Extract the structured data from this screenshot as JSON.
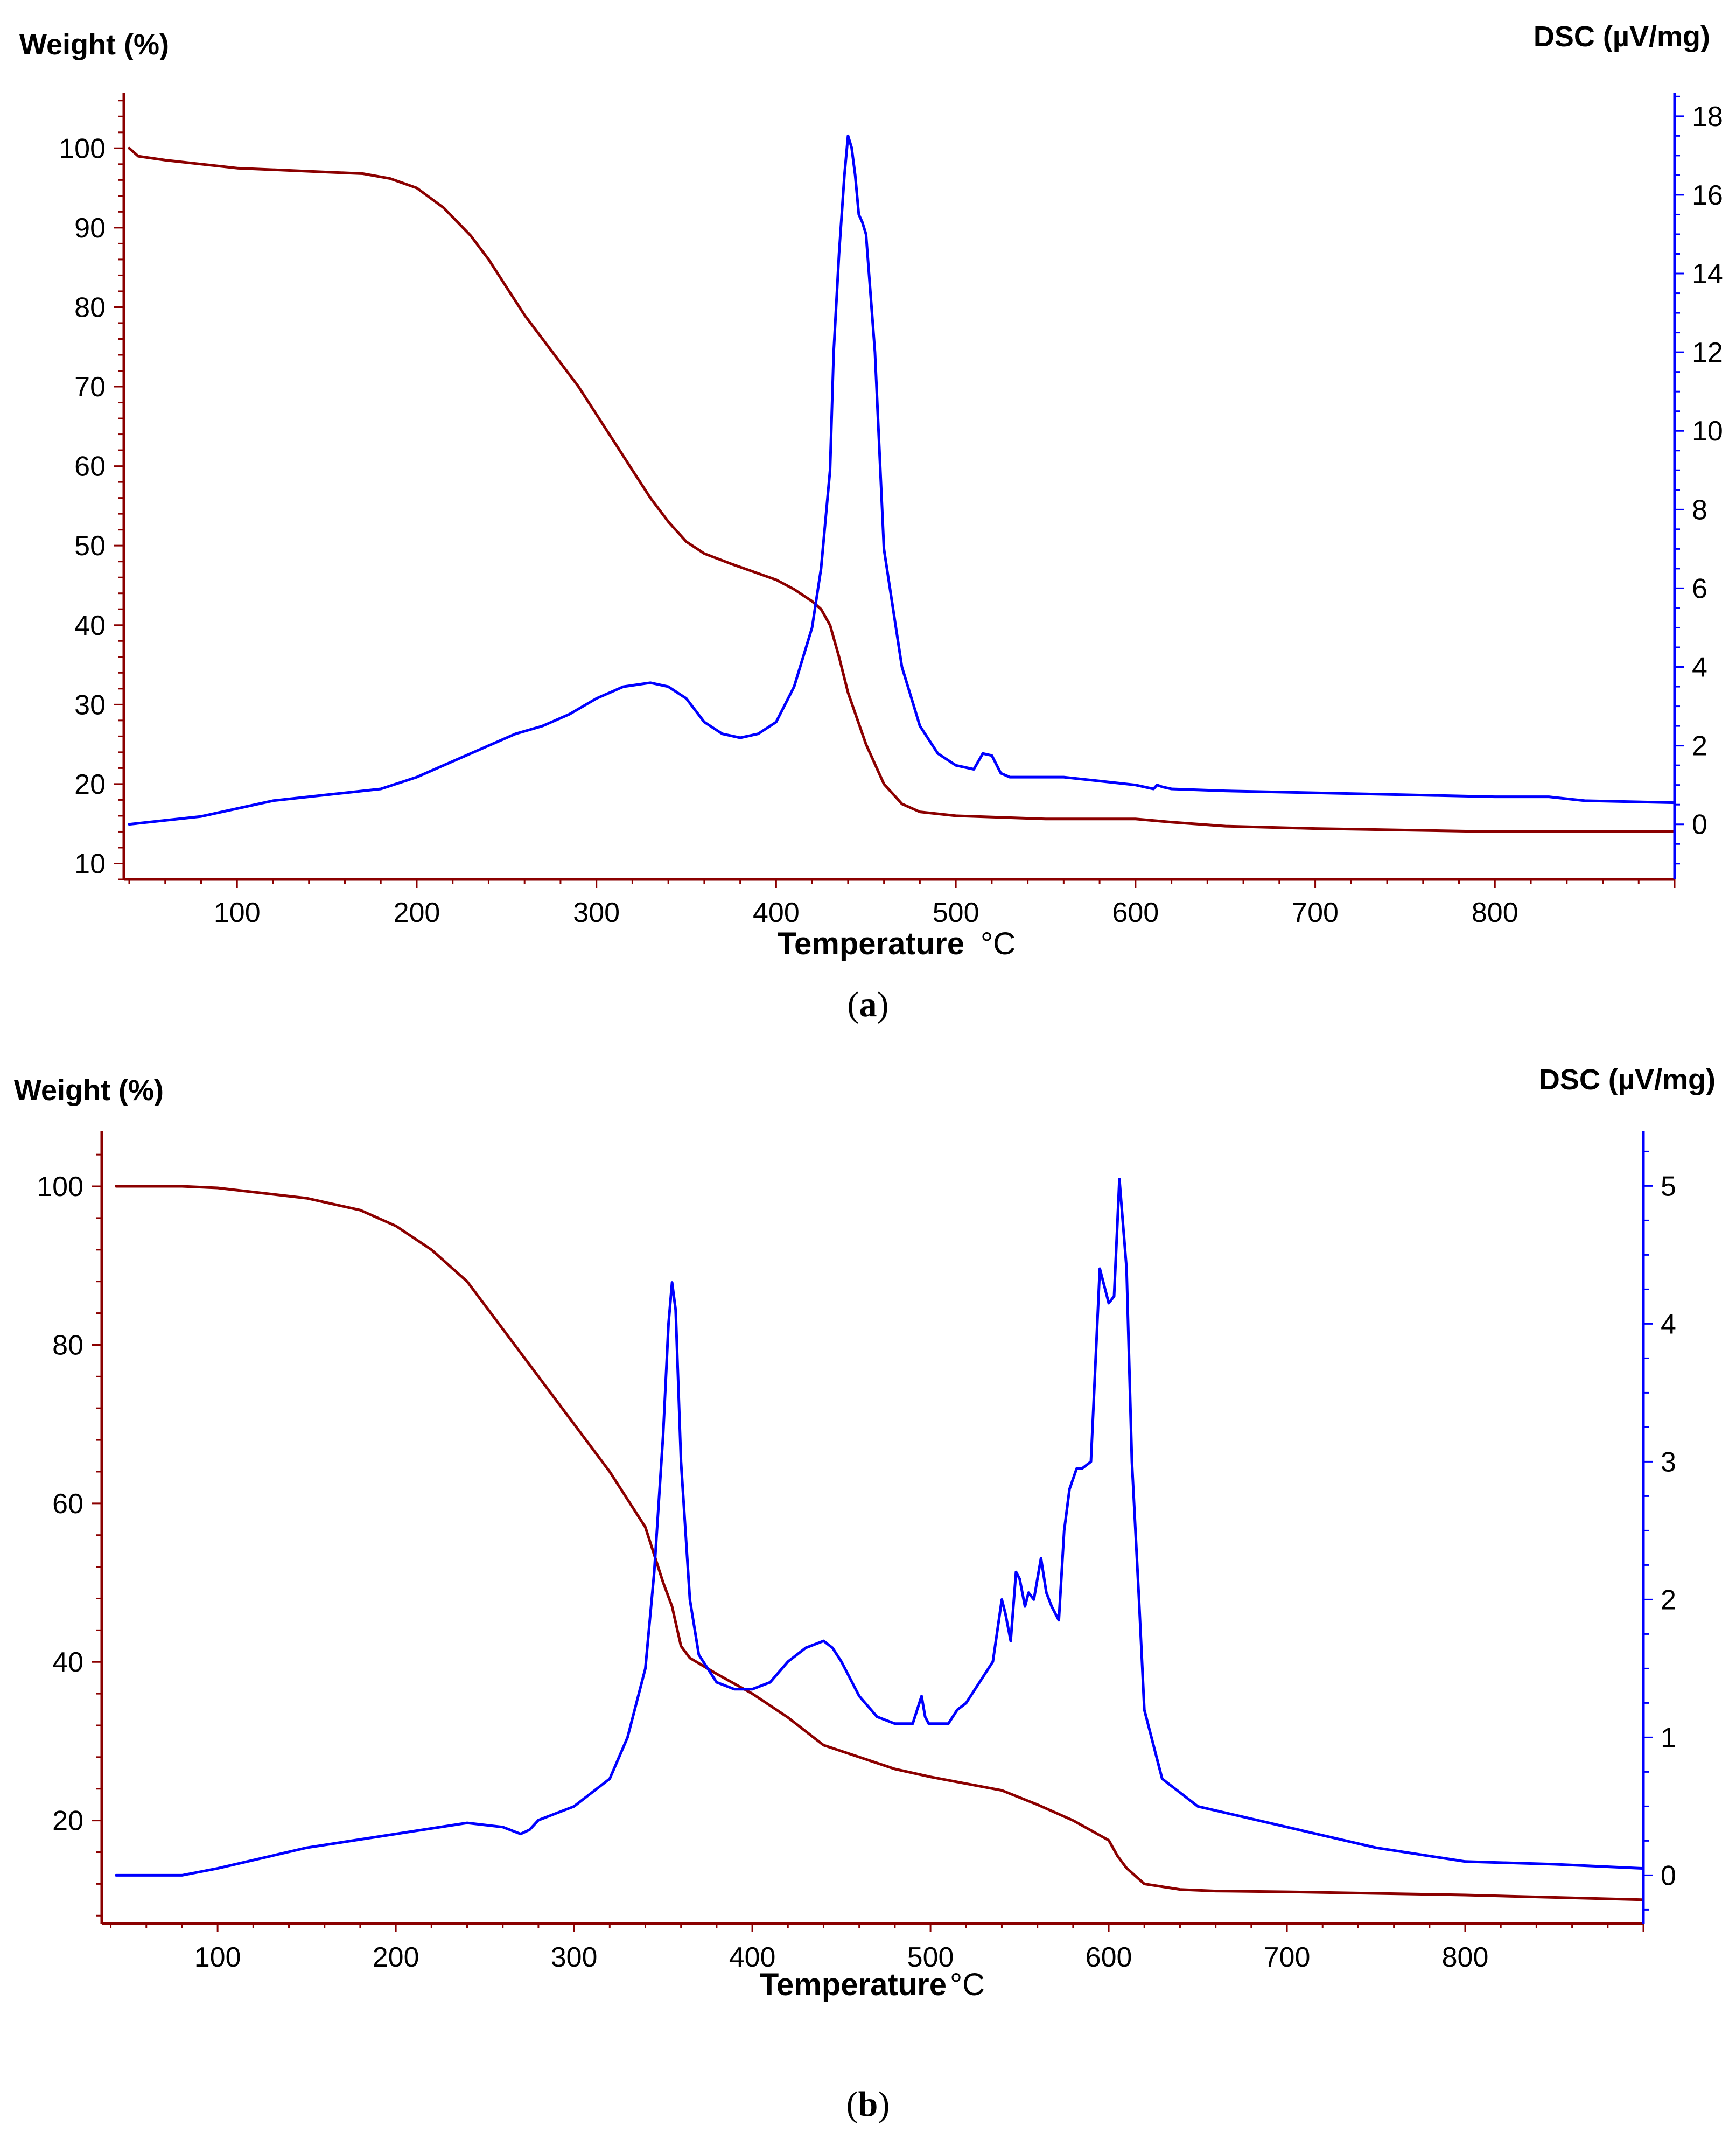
{
  "colors": {
    "weight": "#8b0000",
    "dsc": "#0000ff",
    "axis_x": "#8b0000",
    "axis_right": "#0000ff",
    "text": "#000000"
  },
  "chart_data": [
    {
      "type": "line",
      "caption_letter": "a",
      "xlabel": "Temperature",
      "xunit": "°C",
      "ylabel_left": "Weight (%)",
      "ylabel_right": "DSC (µV/mg)",
      "xlim": [
        37,
        900
      ],
      "ylim_left": [
        8,
        107
      ],
      "ylim_right": [
        -1.4,
        18.6
      ],
      "x_ticks": [
        100,
        200,
        300,
        400,
        500,
        600,
        700,
        800
      ],
      "y_left_ticks": [
        10,
        20,
        30,
        40,
        50,
        60,
        70,
        80,
        90,
        100
      ],
      "y_right_ticks": [
        0,
        2,
        4,
        6,
        8,
        10,
        12,
        14,
        16,
        18
      ],
      "series": [
        {
          "name": "Weight",
          "axis": "left",
          "x": [
            40,
            45,
            60,
            80,
            100,
            130,
            150,
            170,
            185,
            200,
            215,
            230,
            240,
            250,
            260,
            270,
            280,
            290,
            300,
            310,
            320,
            330,
            340,
            350,
            360,
            375,
            390,
            400,
            410,
            420,
            425,
            430,
            435,
            440,
            450,
            460,
            470,
            480,
            500,
            550,
            600,
            620,
            650,
            700,
            750,
            800,
            850,
            900
          ],
          "y": [
            100,
            99,
            98.5,
            98,
            97.5,
            97.2,
            97,
            96.8,
            96.2,
            95,
            92.5,
            89,
            86,
            82.5,
            79,
            76,
            73,
            70,
            66.5,
            63,
            59.5,
            56,
            53,
            50.5,
            49,
            47.7,
            46.5,
            45.7,
            44.5,
            43,
            42,
            40,
            36,
            31.5,
            25,
            20,
            17.5,
            16.5,
            16,
            15.6,
            15.6,
            15.2,
            14.7,
            14.4,
            14.2,
            14,
            14,
            14
          ]
        },
        {
          "name": "DSC",
          "axis": "right",
          "x": [
            40,
            60,
            80,
            100,
            120,
            150,
            180,
            200,
            220,
            240,
            255,
            270,
            285,
            300,
            315,
            330,
            340,
            350,
            360,
            370,
            380,
            390,
            400,
            410,
            420,
            425,
            430,
            432,
            435,
            438,
            440,
            442,
            444,
            446,
            448,
            450,
            455,
            460,
            470,
            480,
            490,
            500,
            510,
            515,
            520,
            525,
            530,
            540,
            560,
            580,
            600,
            610,
            612,
            615,
            620,
            650,
            700,
            750,
            800,
            830,
            850,
            900
          ],
          "y": [
            0,
            0.1,
            0.2,
            0.4,
            0.6,
            0.75,
            0.9,
            1.2,
            1.6,
            2.0,
            2.3,
            2.5,
            2.8,
            3.2,
            3.5,
            3.6,
            3.5,
            3.2,
            2.6,
            2.3,
            2.2,
            2.3,
            2.6,
            3.5,
            5.0,
            6.5,
            9,
            12,
            14.5,
            16.5,
            17.5,
            17.2,
            16.5,
            15.5,
            15.3,
            15.0,
            12,
            7,
            4.0,
            2.5,
            1.8,
            1.5,
            1.4,
            1.8,
            1.75,
            1.3,
            1.2,
            1.2,
            1.2,
            1.1,
            1.0,
            0.9,
            1.0,
            0.95,
            0.9,
            0.85,
            0.8,
            0.75,
            0.7,
            0.7,
            0.6,
            0.55
          ]
        }
      ]
    },
    {
      "type": "line",
      "caption_letter": "b",
      "xlabel": "Temperature",
      "xunit": "°C",
      "ylabel_left": "Weight (%)",
      "ylabel_right": "DSC (µV/mg)",
      "xlim": [
        35,
        900
      ],
      "ylim_left": [
        7,
        107
      ],
      "ylim_right": [
        -0.35,
        5.4
      ],
      "x_ticks": [
        100,
        200,
        300,
        400,
        500,
        600,
        700,
        800
      ],
      "y_left_ticks": [
        20,
        40,
        60,
        80,
        100
      ],
      "y_right_ticks": [
        0,
        1,
        2,
        3,
        4,
        5
      ],
      "series": [
        {
          "name": "Weight",
          "axis": "left",
          "x": [
            43,
            60,
            80,
            100,
            150,
            180,
            200,
            220,
            240,
            260,
            280,
            300,
            320,
            340,
            350,
            355,
            360,
            365,
            380,
            400,
            420,
            440,
            460,
            480,
            500,
            540,
            560,
            580,
            600,
            605,
            610,
            620,
            640,
            660,
            700,
            800,
            900
          ],
          "y": [
            100,
            100,
            100,
            99.8,
            98.5,
            97,
            95,
            92,
            88,
            82,
            76,
            70,
            64,
            57,
            50,
            47,
            42,
            40.5,
            38.5,
            36,
            33,
            29.5,
            28,
            26.5,
            25.5,
            23.8,
            22,
            20,
            17.5,
            15.5,
            14,
            12,
            11.3,
            11.1,
            11,
            10.6,
            10
          ]
        },
        {
          "name": "DSC",
          "axis": "right",
          "x": [
            43,
            60,
            80,
            100,
            150,
            200,
            240,
            260,
            270,
            275,
            280,
            300,
            320,
            330,
            340,
            345,
            350,
            353,
            355,
            357,
            360,
            365,
            370,
            380,
            390,
            400,
            410,
            420,
            430,
            440,
            445,
            450,
            460,
            470,
            480,
            490,
            495,
            497,
            499,
            505,
            510,
            515,
            520,
            525,
            530,
            535,
            540,
            542,
            545,
            548,
            550,
            553,
            555,
            558,
            562,
            565,
            568,
            572,
            575,
            578,
            582,
            585,
            590,
            595,
            600,
            603,
            606,
            610,
            613,
            617,
            620,
            630,
            650,
            700,
            750,
            800,
            850,
            900
          ],
          "y": [
            0,
            0,
            0,
            0.05,
            0.2,
            0.3,
            0.38,
            0.35,
            0.3,
            0.33,
            0.4,
            0.5,
            0.7,
            1.0,
            1.5,
            2.2,
            3.2,
            4.0,
            4.3,
            4.1,
            3.0,
            2.0,
            1.6,
            1.4,
            1.35,
            1.35,
            1.4,
            1.55,
            1.65,
            1.7,
            1.65,
            1.55,
            1.3,
            1.15,
            1.1,
            1.1,
            1.3,
            1.15,
            1.1,
            1.1,
            1.1,
            1.2,
            1.25,
            1.35,
            1.45,
            1.55,
            2.0,
            1.9,
            1.7,
            2.2,
            2.15,
            1.95,
            2.05,
            2.0,
            2.3,
            2.05,
            1.95,
            1.85,
            2.5,
            2.8,
            2.95,
            2.95,
            3.0,
            4.4,
            4.15,
            4.2,
            5.05,
            4.4,
            3.0,
            2.0,
            1.2,
            0.7,
            0.5,
            0.35,
            0.2,
            0.1,
            0.08,
            0.05
          ]
        }
      ]
    }
  ]
}
